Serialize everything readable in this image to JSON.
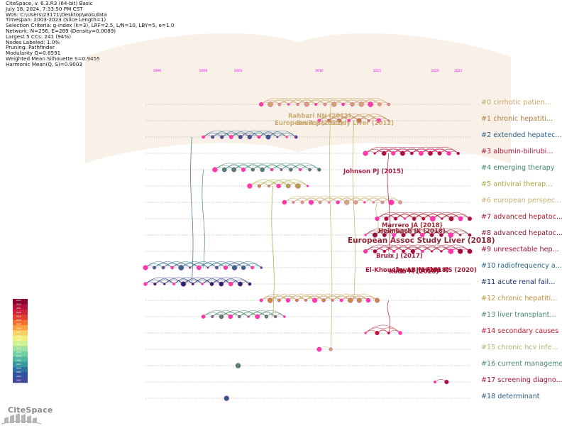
{
  "header": {
    "lines": [
      "CiteSpace, v. 6.3.R3 (64-bit) Basic",
      "July 18, 2024, 7:33:50 PM CST",
      "WoS: C:\\Users\\23171\\Desktop\\wos\\data",
      "Timespan: 2003-2023 (Slice Length=1)",
      "Selection Criteria: g-index (k=3), LRF=2.5, L/N=10, LBY=5, e=1.0",
      "Network: N=256, E=289 (Density=0.0089)",
      "Largest 5 CCs: 241 (94%)",
      "Nodes Labeled: 1.0%",
      "Pruning: Pathfinder",
      "Modularity Q=0.8591",
      "Weighted Mean Silhouette S=0.9455",
      "Harmonic Mean(Q, S)=0.9003"
    ]
  },
  "timeline": {
    "years": [
      1996,
      2000,
      2003,
      2010,
      2015,
      2020,
      2022
    ],
    "year_range": [
      1995,
      2023
    ],
    "color": "#ff00ff"
  },
  "clusters": [
    {
      "id": 0,
      "label": "#0 cirrhotic patien...",
      "color": "#c8a96e",
      "span": [
        2005,
        2016
      ]
    },
    {
      "id": 1,
      "label": "#1 chronic hepatiti...",
      "color": "#b07a3e",
      "span": [
        2010,
        2016
      ]
    },
    {
      "id": 2,
      "label": "#2 extended hepatec...",
      "color": "#2a5f8a",
      "span": [
        2000,
        2008
      ]
    },
    {
      "id": 3,
      "label": "#3 albumin-bilirubi...",
      "color": "#a3163a",
      "span": [
        2014,
        2022
      ]
    },
    {
      "id": 4,
      "label": "#4 emerging therapy",
      "color": "#3a8a6e",
      "span": [
        2001,
        2010
      ]
    },
    {
      "id": 5,
      "label": "#5 antiviral therap...",
      "color": "#a8a840",
      "span": [
        2004,
        2009
      ]
    },
    {
      "id": 6,
      "label": "#6 european perspec...",
      "color": "#c8b070",
      "span": [
        2007,
        2017
      ]
    },
    {
      "id": 7,
      "label": "#7 advanced hepatoc...",
      "color": "#a31a2a",
      "span": [
        2015,
        2023
      ]
    },
    {
      "id": 8,
      "label": "#8 advanced hepatoc...",
      "color": "#8a1a2a",
      "span": [
        2014,
        2023
      ]
    },
    {
      "id": 9,
      "label": "#9 unresectable hep...",
      "color": "#a01030",
      "span": [
        2014,
        2023
      ]
    },
    {
      "id": 10,
      "label": "#10 radiofrequency a...",
      "color": "#2a6a8a",
      "span": [
        1995,
        2005
      ]
    },
    {
      "id": 11,
      "label": "#11 acute renal fail...",
      "color": "#1a2a6a",
      "span": [
        1995,
        2004
      ]
    },
    {
      "id": 12,
      "label": "#12 chronic hepatiti...",
      "color": "#c09040",
      "span": [
        2005,
        2015
      ]
    },
    {
      "id": 13,
      "label": "#13 liver transplant...",
      "color": "#4a8a6a",
      "span": [
        2000,
        2007
      ]
    },
    {
      "id": 14,
      "label": "#14 secondary causes",
      "color": "#c01830",
      "span": [
        2014,
        2017
      ]
    },
    {
      "id": 15,
      "label": "#15 chronic hcv infe...",
      "color": "#b8b070",
      "span": [
        2010,
        2011
      ]
    },
    {
      "id": 16,
      "label": "#16 current manageme...",
      "color": "#4a8a6a",
      "span": [
        2003,
        2003
      ]
    },
    {
      "id": 17,
      "label": "#17 screening diagno...",
      "color": "#a01040",
      "span": [
        2020,
        2021
      ]
    },
    {
      "id": 18,
      "label": "#18 determinant",
      "color": "#2a5f8a",
      "span": [
        2002,
        2002
      ]
    }
  ],
  "node_labels": [
    {
      "text": "Rahbari NN (2011)",
      "color": "#c8a96e",
      "size": "small"
    },
    {
      "text": "European Assoc Study Liver (2012)",
      "color": "#c8a96e",
      "size": "small"
    },
    {
      "text": "Bruix J (2011)",
      "color": "#c8a96e",
      "size": "small"
    },
    {
      "text": "Johnson PJ (2015)",
      "color": "#a3163a",
      "size": "small"
    },
    {
      "text": "Marrero JA (2018)",
      "color": "#a31a2a",
      "size": "small"
    },
    {
      "text": "Heimbach JK (2018)",
      "color": "#8a1a2a",
      "size": "small"
    },
    {
      "text": "European Assoc Study Liver (2018)",
      "color": "#8a1a2a",
      "size": "large"
    },
    {
      "text": "Bruix J (2017)",
      "color": "#a01030",
      "size": "small"
    },
    {
      "text": "El-Khoueiry AB (2017)",
      "color": "#a01030",
      "size": "small"
    },
    {
      "text": "Kudo M (2018)",
      "color": "#a01030",
      "size": "small"
    },
    {
      "text": "Llovet JM (2018)",
      "color": "#a01030",
      "size": "small"
    },
    {
      "text": "Finn RS (2020)",
      "color": "#a01030",
      "size": "small"
    }
  ],
  "legend": {
    "colors": [
      "#8a0030",
      "#b0103a",
      "#d02040",
      "#e04030",
      "#f07030",
      "#f8a040",
      "#f8d060",
      "#f0f080",
      "#d0f090",
      "#a0e0a0",
      "#70d0a0",
      "#50b8a0",
      "#3898a0",
      "#3070a0",
      "#3050a0",
      "#404898"
    ],
    "years": [
      "2023",
      "2022",
      "2021",
      "2020",
      "2019",
      "2018",
      "2017",
      "2016",
      "2015",
      "2014",
      "2013",
      "2012",
      "2011",
      "2010",
      "2009",
      "2008",
      "2007",
      "2006",
      "2005",
      "2004",
      "2003"
    ]
  },
  "logo": {
    "text": "CiteSpace"
  }
}
